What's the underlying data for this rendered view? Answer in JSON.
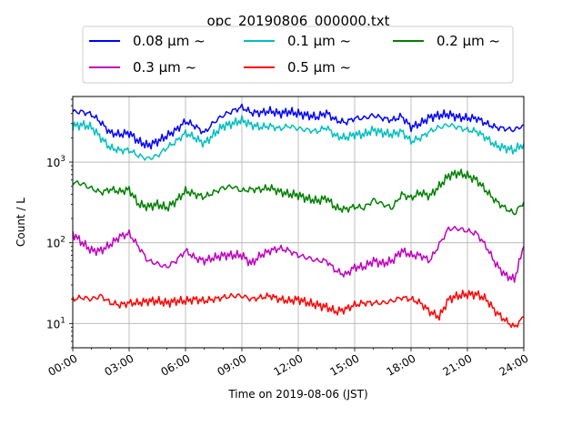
{
  "chart_data": {
    "type": "line",
    "title": "opc_20190806_000000.txt",
    "xlabel": "Time on 2019-08-06 (JST)",
    "ylabel": "Count / L",
    "yscale": "log",
    "ylim": [
      5,
      6500
    ],
    "xlim": [
      "00:00",
      "24:00"
    ],
    "x_ticks": [
      "00:00",
      "03:00",
      "06:00",
      "09:00",
      "12:00",
      "15:00",
      "18:00",
      "21:00",
      "24:00"
    ],
    "y_ticks": [
      {
        "value": 10,
        "label": "10",
        "exp": "1"
      },
      {
        "value": 100,
        "label": "10",
        "exp": "2"
      },
      {
        "value": 1000,
        "label": "10",
        "exp": "3"
      }
    ],
    "grid": true,
    "legend_position": "top-center",
    "x": [
      "00:00",
      "00:30",
      "01:00",
      "01:30",
      "02:00",
      "02:30",
      "03:00",
      "03:30",
      "04:00",
      "04:30",
      "05:00",
      "05:30",
      "06:00",
      "06:30",
      "07:00",
      "07:30",
      "08:00",
      "08:30",
      "09:00",
      "09:30",
      "10:00",
      "10:30",
      "11:00",
      "11:30",
      "12:00",
      "12:30",
      "13:00",
      "13:30",
      "14:00",
      "14:30",
      "15:00",
      "15:30",
      "16:00",
      "16:30",
      "17:00",
      "17:30",
      "18:00",
      "18:30",
      "19:00",
      "19:30",
      "20:00",
      "20:30",
      "21:00",
      "21:30",
      "22:00",
      "22:30",
      "23:00",
      "23:30",
      "24:00"
    ],
    "series": [
      {
        "name": "0.08 μm ~",
        "color": "#0000ff",
        "values": [
          4200,
          4200,
          3900,
          3100,
          2300,
          2200,
          2300,
          1800,
          1600,
          1800,
          2100,
          2500,
          3200,
          2800,
          2300,
          3100,
          3800,
          4300,
          4800,
          4100,
          4100,
          4300,
          4000,
          4200,
          4000,
          3800,
          3600,
          4100,
          3300,
          3100,
          3500,
          3500,
          3800,
          3500,
          3300,
          3700,
          2700,
          3000,
          3600,
          3800,
          3900,
          3600,
          3500,
          3500,
          3000,
          2700,
          2600,
          2500,
          2900
        ]
      },
      {
        "name": "0.1 μm ~",
        "color": "#00bfbf",
        "values": [
          2800,
          2900,
          2700,
          2000,
          1500,
          1400,
          1400,
          1200,
          1100,
          1200,
          1500,
          1800,
          2300,
          2000,
          1700,
          2200,
          2800,
          3000,
          3300,
          2900,
          2700,
          2800,
          2600,
          2800,
          2600,
          2500,
          2400,
          2700,
          2100,
          2000,
          2200,
          2200,
          2500,
          2300,
          2200,
          2400,
          1800,
          2000,
          2400,
          2700,
          2900,
          2700,
          2500,
          2400,
          2000,
          1600,
          1500,
          1400,
          1700
        ]
      },
      {
        "name": "0.2 μm ~",
        "color": "#008000",
        "values": [
          560,
          540,
          470,
          420,
          460,
          430,
          460,
          300,
          280,
          300,
          270,
          330,
          440,
          400,
          370,
          420,
          480,
          500,
          440,
          460,
          460,
          480,
          430,
          400,
          390,
          350,
          330,
          360,
          270,
          260,
          280,
          270,
          340,
          300,
          270,
          400,
          360,
          420,
          380,
          500,
          680,
          730,
          680,
          600,
          440,
          330,
          270,
          230,
          320
        ]
      },
      {
        "name": "0.3 μm ~",
        "color": "#bf00bf",
        "values": [
          130,
          100,
          80,
          80,
          95,
          120,
          130,
          90,
          60,
          55,
          50,
          60,
          80,
          65,
          60,
          65,
          70,
          70,
          70,
          55,
          70,
          80,
          85,
          80,
          70,
          65,
          60,
          60,
          45,
          40,
          50,
          50,
          60,
          55,
          60,
          80,
          70,
          70,
          60,
          95,
          150,
          150,
          140,
          130,
          90,
          55,
          40,
          35,
          90
        ]
      },
      {
        "name": "0.5 μm ~",
        "color": "#ff0000",
        "values": [
          20,
          21,
          20,
          22,
          18,
          17,
          18,
          18,
          19,
          19,
          18,
          19,
          19,
          20,
          19,
          20,
          21,
          22,
          22,
          20,
          21,
          22,
          20,
          19,
          20,
          18,
          17,
          16,
          14,
          15,
          17,
          18,
          18,
          18,
          19,
          21,
          20,
          18,
          14,
          12,
          20,
          22,
          23,
          23,
          20,
          14,
          11,
          9,
          12
        ]
      }
    ]
  }
}
